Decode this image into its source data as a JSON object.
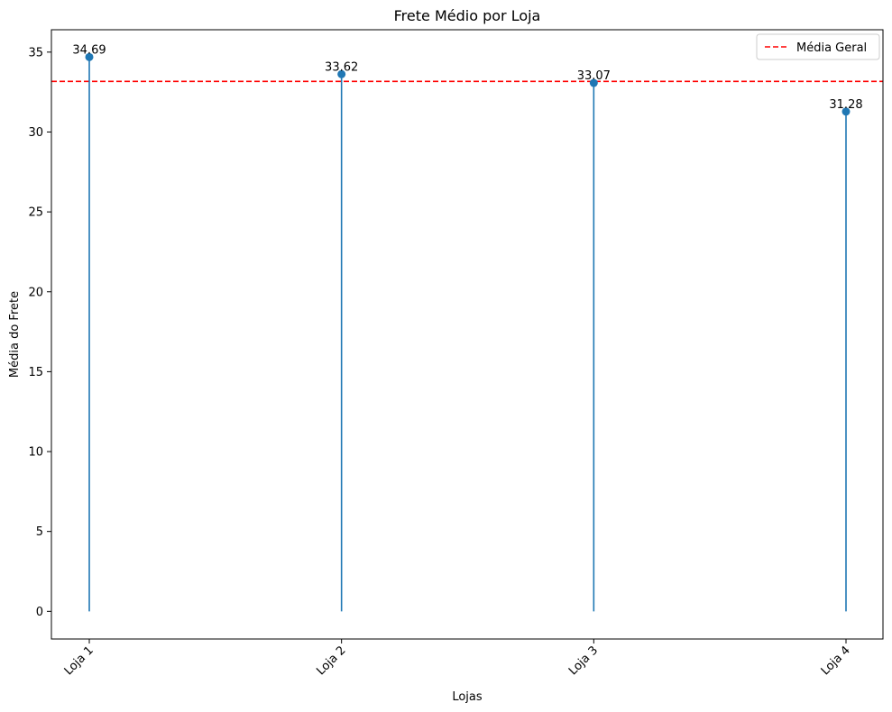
{
  "chart_data": {
    "type": "stem",
    "title": "Frete Médio por Loja",
    "xlabel": "Lojas",
    "ylabel": "Média do Frete",
    "categories": [
      "Loja 1",
      "Loja 2",
      "Loja 3",
      "Loja 4"
    ],
    "values": [
      34.69,
      33.62,
      33.07,
      31.28
    ],
    "value_labels": [
      "34.69",
      "33.62",
      "33.07",
      "31.28"
    ],
    "ylim": [
      -1.73,
      36.4
    ],
    "yticks": [
      0,
      5,
      10,
      15,
      20,
      25,
      30,
      35
    ],
    "reference_line": {
      "name": "Média Geral",
      "value": 33.165,
      "color": "#ff0000",
      "style": "dashed"
    },
    "legend_position": "top-right",
    "series_color": "#1f77b4",
    "grid": false
  }
}
